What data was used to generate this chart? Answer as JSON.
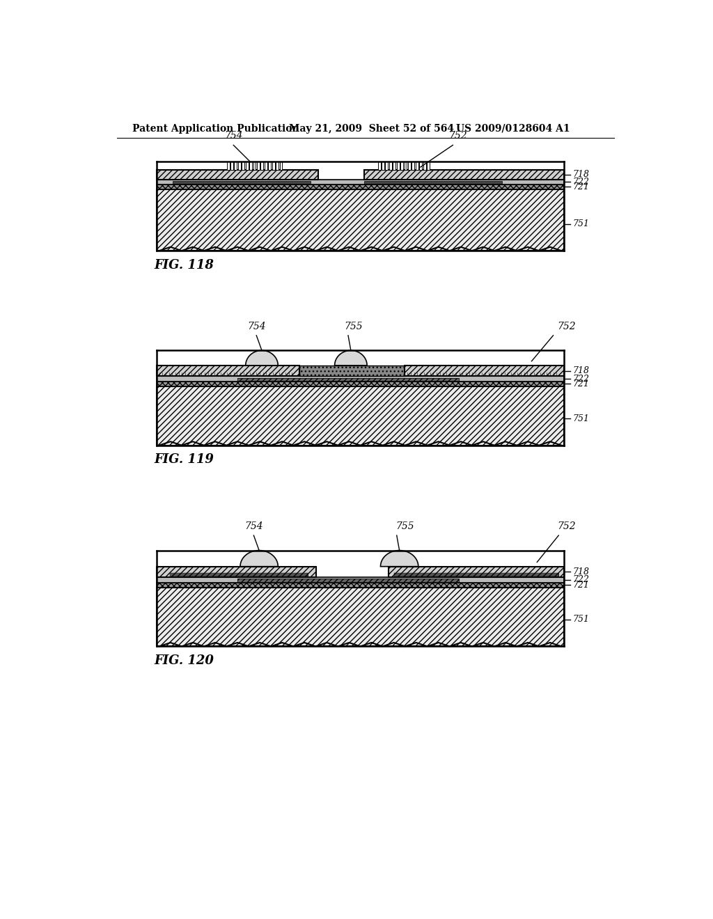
{
  "header_left": "Patent Application Publication",
  "header_mid": "May 21, 2009  Sheet 52 of 564",
  "header_right": "US 2009/0128604 A1",
  "fig118_label": "FIG. 118",
  "fig119_label": "FIG. 119",
  "fig120_label": "FIG. 120",
  "bg_color": "#ffffff",
  "line_color": "#000000",
  "xl": 125,
  "xr": 880
}
